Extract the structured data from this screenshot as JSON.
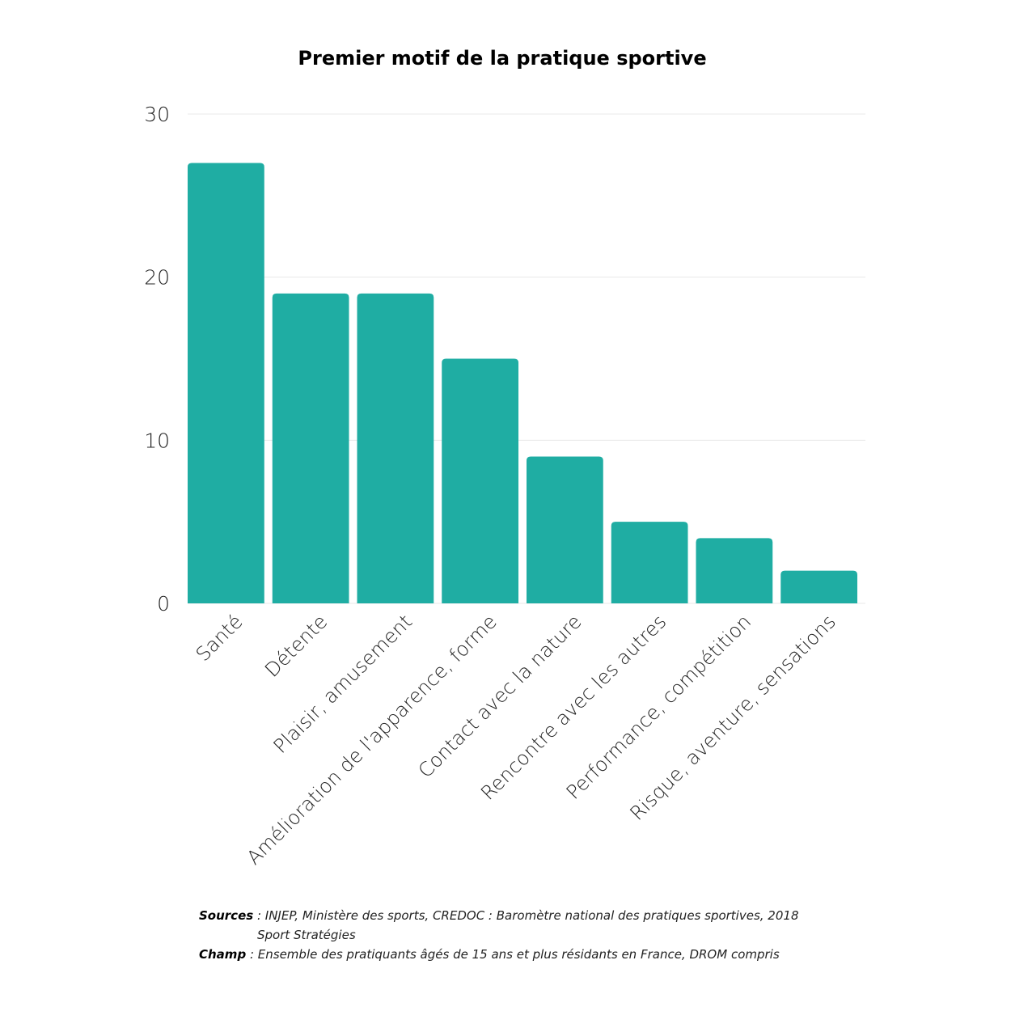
{
  "chart_data": {
    "type": "bar",
    "title": "Premier motif de la pratique sportive",
    "categories": [
      "Santé",
      "Détente",
      "Plaisir, amusement",
      "Amélioration de l'apparence, forme",
      "Contact avec la nature",
      "Rencontre avec les autres",
      "Performance, compétition",
      "Risque, aventure, sensations"
    ],
    "values": [
      27,
      19,
      19,
      15,
      9,
      5,
      4,
      2
    ],
    "ylim": [
      0,
      30
    ],
    "yticks": [
      0,
      10,
      20,
      30
    ],
    "xlabel": "",
    "ylabel": "",
    "grid": true,
    "bar_color": "#1fada3",
    "grid_color": "#e8e8e8"
  },
  "footnotes": {
    "sources_label": "Sources",
    "sources_text": " : INJEP, Ministère des sports, CREDOC : Baromètre national des pratiques sportives, 2018",
    "sources_text2": "Sport Stratégies",
    "champ_label": "Champ",
    "champ_text": " : Ensemble des pratiquants âgés de 15 ans et plus résidants en France, DROM compris"
  }
}
